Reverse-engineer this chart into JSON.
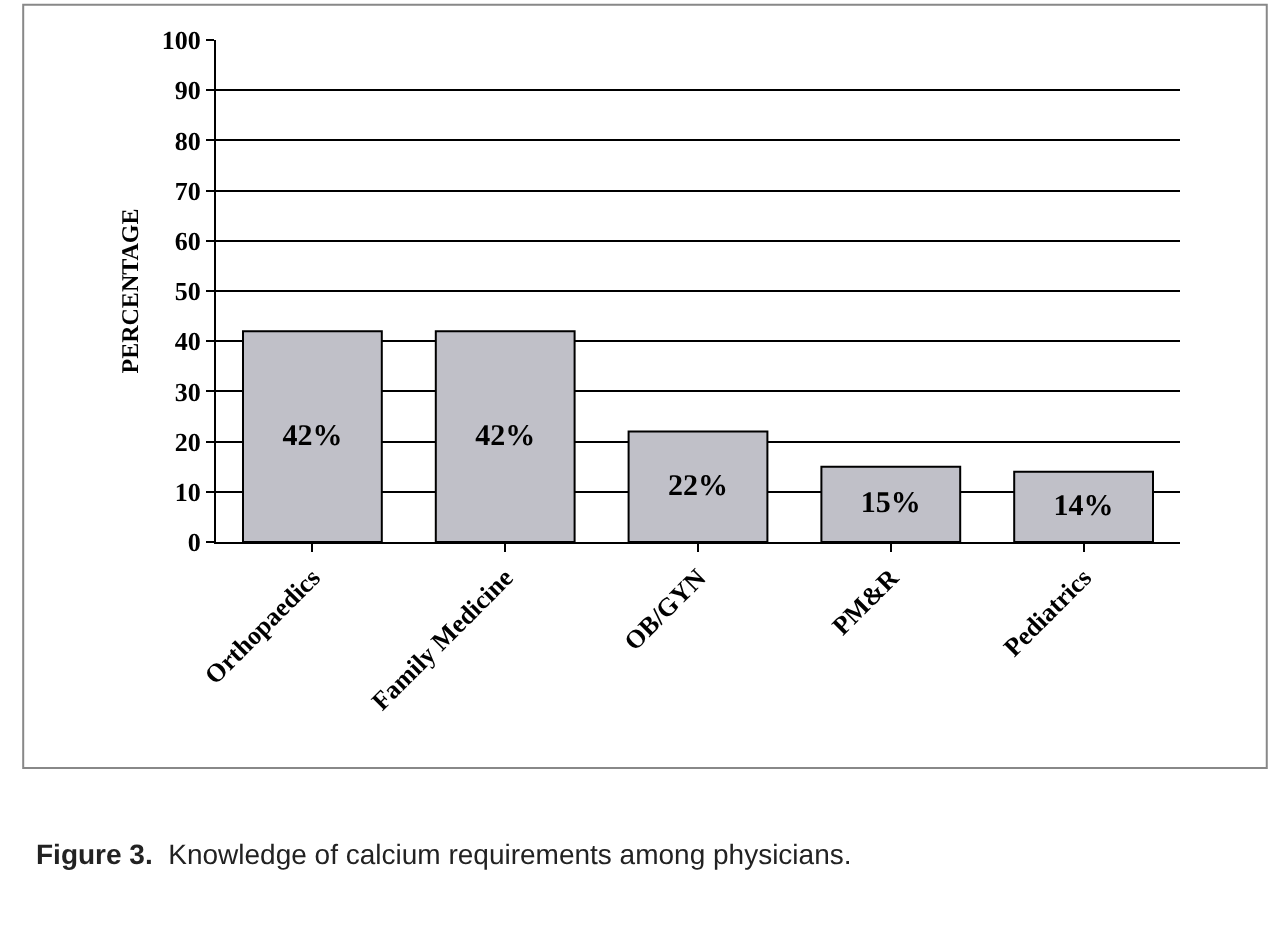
{
  "chart_data": {
    "type": "bar",
    "ylabel": "PERCENTAGE",
    "categories": [
      "Orthopaedics",
      "Family Medicine",
      "OB/GYN",
      "PM&R",
      "Pediatrics"
    ],
    "values": [
      42,
      42,
      22,
      15,
      14
    ],
    "value_labels": [
      "42%",
      "42%",
      "22%",
      "15%",
      "14%"
    ],
    "color": "#c0c0c8",
    "ylim": [
      0,
      100
    ],
    "yticks": [
      0,
      10,
      20,
      30,
      40,
      50,
      60,
      70,
      80,
      90,
      100
    ],
    "grid": "y",
    "legend": false,
    "annotations": [
      "Figure 3.",
      "Knowledge of calcium requirements among physicians."
    ]
  }
}
